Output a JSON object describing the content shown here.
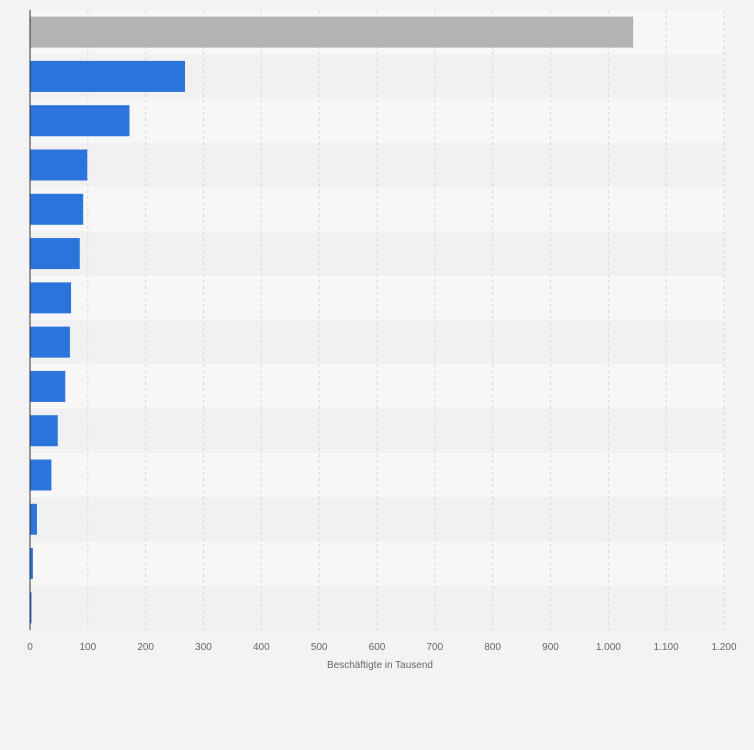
{
  "chart_data": {
    "type": "bar",
    "orientation": "horizontal",
    "categories": [
      "",
      "",
      "",
      "",
      "",
      "",
      "",
      "",
      "",
      "",
      "",
      "",
      "",
      ""
    ],
    "values": [
      1043,
      268,
      172,
      99,
      92,
      86,
      71,
      69,
      61,
      48,
      37,
      12,
      5,
      1
    ],
    "bar_colors": [
      "#b3b3b3",
      "#2a74db",
      "#2a74db",
      "#2a74db",
      "#2a74db",
      "#2a74db",
      "#2a74db",
      "#2a74db",
      "#2a74db",
      "#2a74db",
      "#2a74db",
      "#2a74db",
      "#2a74db",
      "#2a74db"
    ],
    "xlabel": "Beschäftigte in Tausend",
    "xlim": [
      0,
      1200
    ],
    "xticks": [
      0,
      100,
      200,
      300,
      400,
      500,
      600,
      700,
      800,
      900,
      1000,
      1100,
      1200
    ],
    "xtick_labels": [
      "0",
      "100",
      "200",
      "300",
      "400",
      "500",
      "600",
      "700",
      "800",
      "900",
      "1.000",
      "1.100",
      "1.200"
    ],
    "grid": true,
    "colors": {
      "background": "#f3f3f3",
      "band_light": "#f7f7f7",
      "band_dark": "#f1f1f1",
      "grid": "#d7d7d7",
      "axis": "#333333"
    }
  }
}
